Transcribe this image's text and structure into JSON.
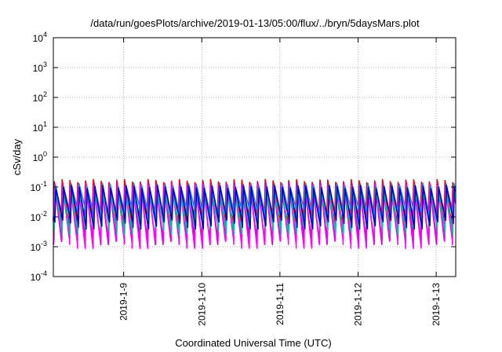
{
  "chart_data": {
    "type": "line",
    "title": "/data/run/goesPlots/archive/2019-01-13/05:00/flux/../bryn/5daysMars.plot",
    "xlabel": "Coordinated Universal Time (UTC)",
    "ylabel": "cSv/day",
    "x_range_days": [
      8.1,
      13.25
    ],
    "x_ticks": [
      {
        "day": 9,
        "label": "2019-1-9"
      },
      {
        "day": 10,
        "label": "2019-1-10"
      },
      {
        "day": 11,
        "label": "2019-1-11"
      },
      {
        "day": 12,
        "label": "2019-1-12"
      },
      {
        "day": 13,
        "label": "2019-1-13"
      }
    ],
    "y_scale": "log",
    "ylim_exponents": [
      -4,
      4
    ],
    "y_ticks": [
      {
        "exp": 4,
        "base": "10",
        "sup": "4"
      },
      {
        "exp": 3,
        "base": "10",
        "sup": "3"
      },
      {
        "exp": 2,
        "base": "10",
        "sup": "2"
      },
      {
        "exp": 1,
        "base": "10",
        "sup": "1"
      },
      {
        "exp": 0,
        "base": "10",
        "sup": "0"
      },
      {
        "exp": -1,
        "base": "10",
        "sup": "-1"
      },
      {
        "exp": -2,
        "base": "10",
        "sup": "-2"
      },
      {
        "exp": -3,
        "base": "10",
        "sup": "-3"
      },
      {
        "exp": -4,
        "base": "10",
        "sup": "-4"
      }
    ],
    "grid": true,
    "sawtooth_period_days": 0.1,
    "series": [
      {
        "color": "#ff0000",
        "peak": 0.16,
        "trough": 0.009
      },
      {
        "color": "#c000c0",
        "peak": 0.13,
        "trough": 0.0018
      },
      {
        "color": "#ff00ff",
        "peak": 0.11,
        "trough": 0.0013
      },
      {
        "color": "#00c0a0",
        "peak": 0.09,
        "trough": 0.004
      },
      {
        "color": "#2080ff",
        "peak": 0.12,
        "trough": 0.012
      },
      {
        "color": "#0000cc",
        "peak": 0.1,
        "trough": 0.006
      }
    ]
  }
}
